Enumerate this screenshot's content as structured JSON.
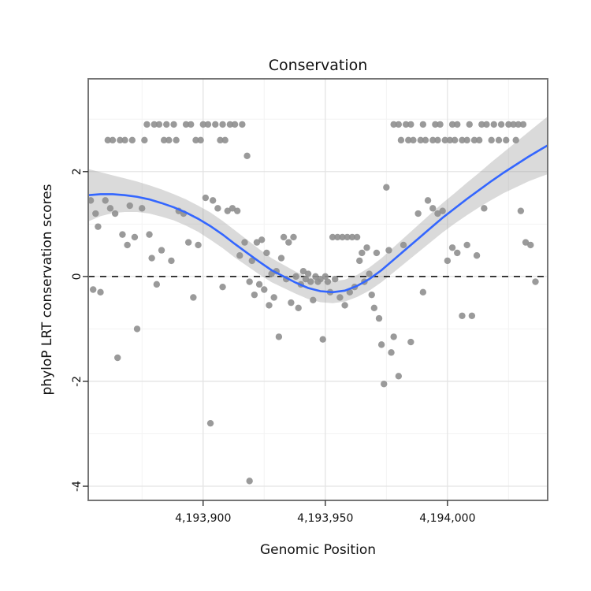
{
  "figure": {
    "title": "Conservation"
  },
  "chart_data": {
    "type": "scatter",
    "title": "Conservation",
    "xlabel": "Genomic Position",
    "ylabel": "phyloP LRT conservation scores",
    "xlim": [
      4193853,
      4194041
    ],
    "ylim": [
      -4.27,
      3.77
    ],
    "grid": true,
    "legend": "none",
    "x_ticks": [
      {
        "value": 4193900,
        "label": "4,193,900"
      },
      {
        "value": 4193950,
        "label": "4,193,950"
      },
      {
        "value": 4194000,
        "label": "4,194,000"
      }
    ],
    "y_ticks": [
      {
        "value": -4,
        "label": "-4"
      },
      {
        "value": -2,
        "label": "-2"
      },
      {
        "value": 0,
        "label": "0"
      },
      {
        "value": 2,
        "label": "2"
      }
    ],
    "x_minor_ticks": [
      4193875,
      4193925,
      4193975,
      4194025
    ],
    "y_minor_ticks": [
      -3,
      -1,
      1,
      3
    ],
    "reference_line": {
      "y": 0,
      "style": "dashed",
      "color": "#000000"
    },
    "colors": {
      "point": "#8f8f8f",
      "smooth": "#3366FF",
      "band": "#9e9e9e",
      "panel": "#ffffff",
      "grid_major": "#e4e4e4",
      "grid_minor": "#f3f3f3",
      "border": "#757575"
    },
    "points": [
      [
        4193861,
        2.6
      ],
      [
        4193863,
        2.6
      ],
      [
        4193866,
        2.6
      ],
      [
        4193868,
        2.6
      ],
      [
        4193871,
        2.6
      ],
      [
        4193876,
        2.6
      ],
      [
        4193884,
        2.6
      ],
      [
        4193886,
        2.6
      ],
      [
        4193889,
        2.6
      ],
      [
        4193897,
        2.6
      ],
      [
        4193899,
        2.6
      ],
      [
        4193907,
        2.6
      ],
      [
        4193909,
        2.6
      ],
      [
        4193877,
        2.9
      ],
      [
        4193880,
        2.9
      ],
      [
        4193882,
        2.9
      ],
      [
        4193885,
        2.9
      ],
      [
        4193888,
        2.9
      ],
      [
        4193893,
        2.9
      ],
      [
        4193895,
        2.9
      ],
      [
        4193900,
        2.9
      ],
      [
        4193902,
        2.9
      ],
      [
        4193905,
        2.9
      ],
      [
        4193908,
        2.9
      ],
      [
        4193911,
        2.9
      ],
      [
        4193913,
        2.9
      ],
      [
        4193916,
        2.9
      ],
      [
        4193918,
        2.3
      ],
      [
        4193978,
        2.9
      ],
      [
        4193980,
        2.9
      ],
      [
        4193983,
        2.9
      ],
      [
        4193985,
        2.9
      ],
      [
        4193990,
        2.9
      ],
      [
        4193995,
        2.9
      ],
      [
        4193997,
        2.9
      ],
      [
        4194002,
        2.9
      ],
      [
        4194004,
        2.9
      ],
      [
        4194009,
        2.9
      ],
      [
        4194014,
        2.9
      ],
      [
        4194016,
        2.9
      ],
      [
        4194019,
        2.9
      ],
      [
        4194022,
        2.9
      ],
      [
        4194025,
        2.9
      ],
      [
        4194027,
        2.9
      ],
      [
        4194029,
        2.9
      ],
      [
        4194031,
        2.9
      ],
      [
        4193981,
        2.6
      ],
      [
        4193984,
        2.6
      ],
      [
        4193986,
        2.6
      ],
      [
        4193989,
        2.6
      ],
      [
        4193991,
        2.6
      ],
      [
        4193994,
        2.6
      ],
      [
        4193996,
        2.6
      ],
      [
        4193999,
        2.6
      ],
      [
        4194001,
        2.6
      ],
      [
        4194003,
        2.6
      ],
      [
        4194006,
        2.6
      ],
      [
        4194008,
        2.6
      ],
      [
        4194011,
        2.6
      ],
      [
        4194013,
        2.6
      ],
      [
        4194018,
        2.6
      ],
      [
        4194021,
        2.6
      ],
      [
        4194024,
        2.6
      ],
      [
        4194028,
        2.6
      ],
      [
        4193854,
        1.45
      ],
      [
        4193855,
        -0.25
      ],
      [
        4193856,
        1.2
      ],
      [
        4193857,
        0.95
      ],
      [
        4193858,
        -0.3
      ],
      [
        4193860,
        1.45
      ],
      [
        4193862,
        1.3
      ],
      [
        4193864,
        1.2
      ],
      [
        4193865,
        -1.55
      ],
      [
        4193867,
        0.8
      ],
      [
        4193869,
        0.6
      ],
      [
        4193870,
        1.35
      ],
      [
        4193872,
        0.75
      ],
      [
        4193873,
        -1.0
      ],
      [
        4193875,
        1.3
      ],
      [
        4193878,
        0.8
      ],
      [
        4193879,
        0.35
      ],
      [
        4193881,
        -0.15
      ],
      [
        4193883,
        0.5
      ],
      [
        4193887,
        0.3
      ],
      [
        4193890,
        1.25
      ],
      [
        4193892,
        1.2
      ],
      [
        4193894,
        0.65
      ],
      [
        4193896,
        -0.4
      ],
      [
        4193898,
        0.6
      ],
      [
        4193901,
        1.5
      ],
      [
        4193903,
        -2.8
      ],
      [
        4193904,
        1.45
      ],
      [
        4193906,
        1.3
      ],
      [
        4193908,
        -0.2
      ],
      [
        4193910,
        1.25
      ],
      [
        4193912,
        1.3
      ],
      [
        4193914,
        1.25
      ],
      [
        4193915,
        0.4
      ],
      [
        4193917,
        0.65
      ],
      [
        4193919,
        -3.9
      ],
      [
        4193919,
        -0.1
      ],
      [
        4193920,
        0.3
      ],
      [
        4193921,
        -0.35
      ],
      [
        4193922,
        0.65
      ],
      [
        4193923,
        -0.15
      ],
      [
        4193924,
        0.7
      ],
      [
        4193925,
        -0.25
      ],
      [
        4193926,
        0.45
      ],
      [
        4193927,
        -0.55
      ],
      [
        4193928,
        0.05
      ],
      [
        4193929,
        -0.4
      ],
      [
        4193930,
        0.1
      ],
      [
        4193931,
        -1.15
      ],
      [
        4193932,
        0.35
      ],
      [
        4193933,
        0.75
      ],
      [
        4193934,
        -0.05
      ],
      [
        4193935,
        0.65
      ],
      [
        4193936,
        -0.5
      ],
      [
        4193937,
        0.75
      ],
      [
        4193938,
        0.0
      ],
      [
        4193939,
        -0.6
      ],
      [
        4193940,
        -0.15
      ],
      [
        4193941,
        0.1
      ],
      [
        4193942,
        -0.05
      ],
      [
        4193943,
        0.05
      ],
      [
        4193944,
        -0.1
      ],
      [
        4193945,
        -0.45
      ],
      [
        4193946,
        0.0
      ],
      [
        4193947,
        -0.1
      ],
      [
        4193948,
        -0.05
      ],
      [
        4193949,
        -1.2
      ],
      [
        4193950,
        0.0
      ],
      [
        4193951,
        -0.1
      ],
      [
        4193952,
        -0.3
      ],
      [
        4193953,
        0.75
      ],
      [
        4193954,
        -0.05
      ],
      [
        4193955,
        0.75
      ],
      [
        4193956,
        -0.4
      ],
      [
        4193957,
        0.75
      ],
      [
        4193958,
        -0.55
      ],
      [
        4193959,
        0.75
      ],
      [
        4193960,
        -0.3
      ],
      [
        4193961,
        0.75
      ],
      [
        4193962,
        -0.2
      ],
      [
        4193963,
        0.75
      ],
      [
        4193964,
        0.3
      ],
      [
        4193965,
        0.45
      ],
      [
        4193966,
        -0.1
      ],
      [
        4193967,
        0.55
      ],
      [
        4193968,
        0.05
      ],
      [
        4193969,
        -0.35
      ],
      [
        4193970,
        -0.6
      ],
      [
        4193971,
        0.45
      ],
      [
        4193972,
        -0.8
      ],
      [
        4193973,
        -1.3
      ],
      [
        4193974,
        -2.05
      ],
      [
        4193975,
        1.7
      ],
      [
        4193976,
        0.5
      ],
      [
        4193977,
        -1.45
      ],
      [
        4193978,
        -1.15
      ],
      [
        4193980,
        -1.9
      ],
      [
        4193982,
        0.6
      ],
      [
        4193985,
        -1.25
      ],
      [
        4193988,
        1.2
      ],
      [
        4193990,
        -0.3
      ],
      [
        4193992,
        1.45
      ],
      [
        4193994,
        1.3
      ],
      [
        4193996,
        1.2
      ],
      [
        4193998,
        1.25
      ],
      [
        4194000,
        0.3
      ],
      [
        4194002,
        0.55
      ],
      [
        4194004,
        0.45
      ],
      [
        4194006,
        -0.75
      ],
      [
        4194008,
        0.6
      ],
      [
        4194010,
        -0.75
      ],
      [
        4194012,
        0.4
      ],
      [
        4194015,
        1.3
      ],
      [
        4194030,
        1.25
      ],
      [
        4194032,
        0.65
      ],
      [
        4194034,
        0.6
      ],
      [
        4194036,
        -0.1
      ]
    ],
    "smooth": {
      "x": [
        4193853,
        4193858,
        4193863,
        4193868,
        4193873,
        4193878,
        4193883,
        4193888,
        4193893,
        4193898,
        4193903,
        4193908,
        4193913,
        4193918,
        4193923,
        4193928,
        4193933,
        4193938,
        4193943,
        4193948,
        4193953,
        4193958,
        4193963,
        4193968,
        4193973,
        4193978,
        4193983,
        4193988,
        4193993,
        4193998,
        4194003,
        4194008,
        4194013,
        4194018,
        4194023,
        4194028,
        4194033,
        4194038,
        4194041
      ],
      "y": [
        1.55,
        1.57,
        1.57,
        1.55,
        1.52,
        1.47,
        1.4,
        1.32,
        1.22,
        1.1,
        0.96,
        0.8,
        0.62,
        0.45,
        0.28,
        0.12,
        0.0,
        -0.12,
        -0.22,
        -0.28,
        -0.3,
        -0.27,
        -0.18,
        -0.05,
        0.12,
        0.32,
        0.52,
        0.72,
        0.92,
        1.12,
        1.3,
        1.48,
        1.65,
        1.82,
        1.98,
        2.13,
        2.28,
        2.42,
        2.5
      ],
      "half_width": [
        0.5,
        0.42,
        0.36,
        0.32,
        0.29,
        0.27,
        0.26,
        0.25,
        0.25,
        0.25,
        0.26,
        0.26,
        0.26,
        0.25,
        0.24,
        0.23,
        0.22,
        0.21,
        0.21,
        0.21,
        0.21,
        0.21,
        0.21,
        0.22,
        0.23,
        0.24,
        0.25,
        0.26,
        0.27,
        0.28,
        0.29,
        0.31,
        0.33,
        0.36,
        0.39,
        0.43,
        0.47,
        0.52,
        0.55
      ]
    }
  }
}
